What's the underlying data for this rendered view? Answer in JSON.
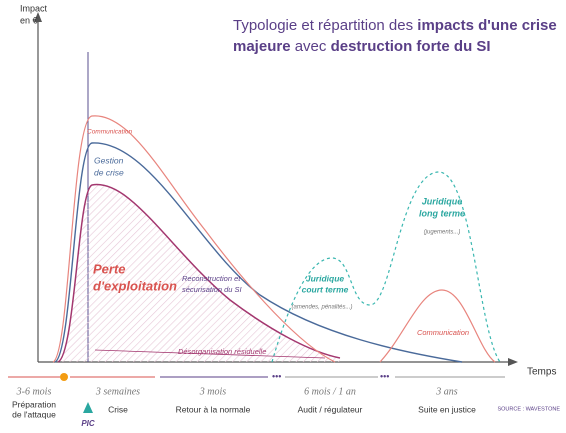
{
  "axis": {
    "y_label": [
      "Impact",
      "en €"
    ],
    "x_label": "Temps"
  },
  "title": {
    "line1": [
      "Typologie et répartition des ",
      "impacts d'une crise"
    ],
    "line2": [
      "majeure",
      " avec ",
      "destruction forte du SI"
    ]
  },
  "curves": {
    "communication": "Communication",
    "gestion": [
      "Gestion",
      "de crise"
    ],
    "perte": [
      "Perte",
      "d'exploitation"
    ],
    "reconstruction": [
      "Reconstruction et",
      "sécurisation du SI"
    ],
    "desorganisation": "Désorganisation résiduelle",
    "juridique_court": [
      "Juridique",
      "court terme"
    ],
    "juridique_court_note": "(amendes, pénalités...)",
    "juridique_long": [
      "Juridique",
      "long terme"
    ],
    "juridique_long_note": "(jugements...)",
    "communication_2": "Communication"
  },
  "timeline": {
    "durations": [
      "3-6 mois",
      "3 semaines",
      "3 mois",
      "6 mois / 1 an",
      "3 ans"
    ],
    "phases": [
      [
        "Préparation",
        "de l'attaque"
      ],
      [
        "Crise"
      ],
      [
        "Retour à la normale"
      ],
      [
        "Audit / régulateur"
      ],
      [
        "Suite en justice"
      ]
    ],
    "peak": "PIC"
  },
  "source": "SOURCE : WAVESTONE"
}
